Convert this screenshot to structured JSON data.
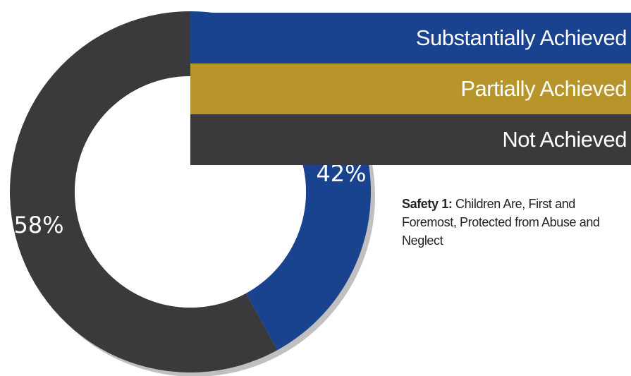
{
  "colors": {
    "substantially": "#19438f",
    "partially": "#b8952a",
    "not": "#3a3a3c",
    "shadow": "#4a4a4a",
    "center": "#ffffff"
  },
  "legend": {
    "substantially": "Substantially Achieved",
    "partially": "Partially Achieved",
    "not": "Not Achieved"
  },
  "caption": {
    "bold": "Safety 1:",
    "text": " Children Are, First and Foremost, Protected from Abuse and Neglect"
  },
  "chart_data": {
    "type": "pie",
    "donut": true,
    "title": "",
    "slices": [
      {
        "label": "Substantially Achieved",
        "value": 42,
        "display": "42%",
        "color": "#19438f"
      },
      {
        "label": "Partially Achieved",
        "value": 0,
        "display": "",
        "color": "#b8952a"
      },
      {
        "label": "Not Achieved",
        "value": 58,
        "display": "58%",
        "color": "#3a3a3c"
      }
    ],
    "legend_placement": "top-right"
  }
}
